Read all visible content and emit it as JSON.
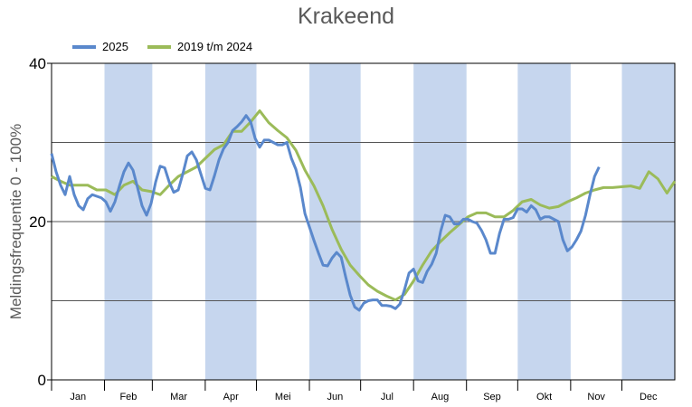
{
  "chart_data": {
    "type": "line",
    "title": "Krakeend",
    "xlabel": "",
    "ylabel": "Meldingsfrequentie 0 - 100%",
    "ylim": [
      0,
      40
    ],
    "xlim_days": [
      0,
      365
    ],
    "yticks": [
      "0",
      "20",
      "40"
    ],
    "gridlines": [
      10,
      20,
      30
    ],
    "months": [
      "Jan",
      "Feb",
      "Mar",
      "Apr",
      "Mei",
      "Jun",
      "Jul",
      "Aug",
      "Sep",
      "Okt",
      "Nov",
      "Dec"
    ],
    "legend_position": "top-left",
    "colors": {
      "band": "#c6d6ee",
      "s2025": "#5a88cc",
      "s2019": "#9bbb59"
    },
    "series": [
      {
        "name": "2025",
        "start_day": 0,
        "step_days": 2.65,
        "values": [
          28.6,
          26.3,
          24.6,
          23.4,
          25.7,
          23.4,
          22,
          21.5,
          22.9,
          23.4,
          23.2,
          23,
          22.5,
          21.3,
          22.5,
          24.5,
          26.3,
          27.4,
          26.5,
          24.3,
          22,
          20.8,
          22.3,
          25,
          27,
          26.8,
          25,
          23.7,
          24,
          26,
          28.3,
          28.8,
          27.8,
          26,
          24.2,
          24,
          25.8,
          27.8,
          29.2,
          30,
          31.5,
          32,
          32.6,
          33.4,
          32.6,
          30.5,
          29.4,
          30.3,
          30.3,
          30,
          29.7,
          29.7,
          30,
          28,
          26.6,
          24.3,
          21,
          19.3,
          17.6,
          16,
          14.5,
          14.4,
          15.4,
          16.1,
          15.5,
          13,
          10.7,
          9.2,
          8.8,
          9.7,
          10,
          10.1,
          10.1,
          9.4,
          9.4,
          9.3,
          9,
          9.6,
          11.4,
          13.5,
          14,
          12.5,
          12.3,
          13.7,
          14.6,
          16,
          18.8,
          20.8,
          20.6,
          19.7,
          19.7,
          20.3,
          20.3,
          20,
          19.8,
          18.9,
          17.7,
          16,
          16,
          18.5,
          20.3,
          20.3,
          20.5,
          21.6,
          21.6,
          21.2,
          22,
          21.5,
          20.3,
          20.6,
          20.6,
          20.3,
          20,
          17.7,
          16.3,
          16.8,
          17.7,
          18.8,
          20.8,
          23.4,
          25.7,
          26.9
        ]
      },
      {
        "name": "2019 t/m 2024",
        "start_day": 0,
        "step_days": 5.3,
        "values": [
          25.7,
          25.1,
          24.6,
          24.6,
          24.6,
          24,
          24,
          23.4,
          24.6,
          25.1,
          24,
          23.8,
          23.4,
          24.6,
          25.7,
          26.3,
          26.9,
          28,
          29.1,
          29.7,
          31.4,
          31.4,
          32.6,
          34,
          32.5,
          31.5,
          30.6,
          29,
          26.5,
          24.5,
          22,
          19,
          16.5,
          14.5,
          13.2,
          12,
          11.2,
          10.6,
          10.1,
          10.8,
          12.5,
          14.5,
          16.3,
          17.5,
          18.6,
          19.6,
          20.6,
          21.1,
          21.1,
          20.6,
          20.6,
          21.4,
          22.5,
          22.8,
          22.1,
          21.7,
          21.9,
          22.5,
          23,
          23.6,
          24,
          24.3,
          24.3,
          24.4,
          24.5,
          24.2,
          26.3,
          25.4,
          23.6,
          25.1
        ]
      }
    ]
  }
}
